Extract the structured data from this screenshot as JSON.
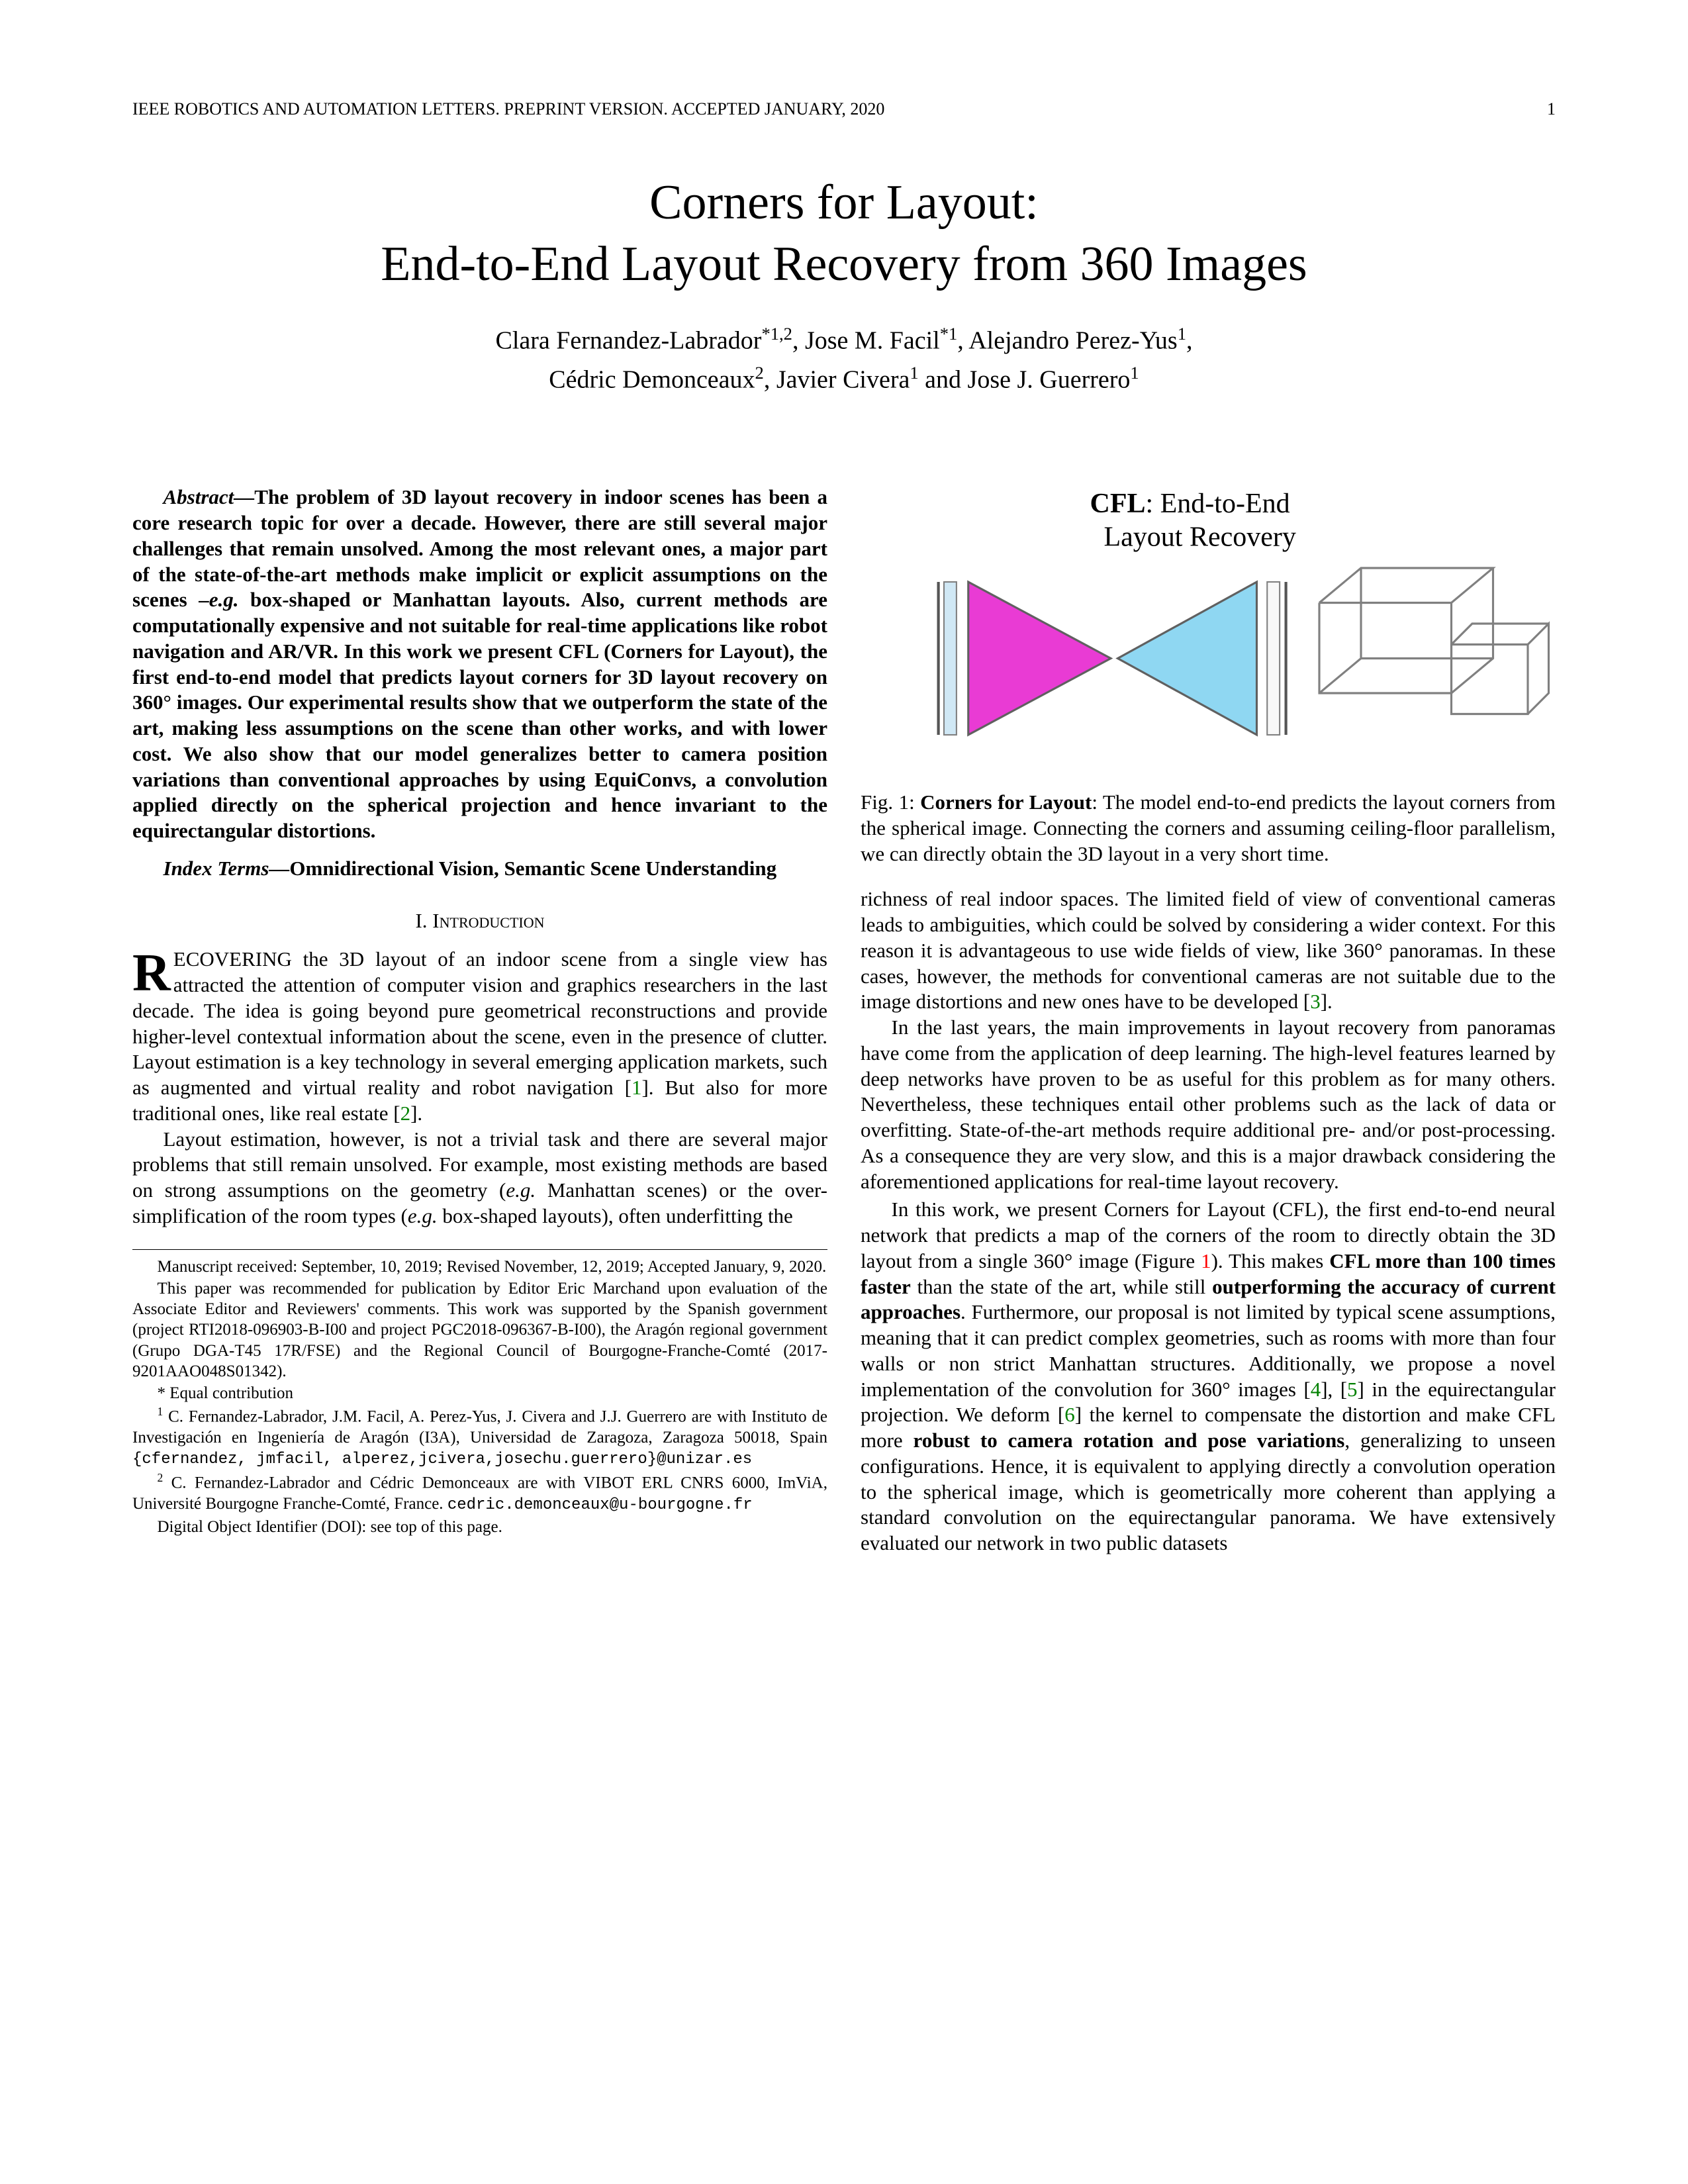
{
  "header": {
    "journal": "IEEE ROBOTICS AND AUTOMATION LETTERS. PREPRINT VERSION. ACCEPTED JANUARY, 2020",
    "page_number": "1"
  },
  "title": {
    "line1": "Corners for Layout:",
    "line2": "End-to-End Layout Recovery from 360 Images"
  },
  "authors": {
    "line1_parts": [
      {
        "t": "Clara Fernandez-Labrador"
      },
      {
        "t": "*1,2",
        "sup": true
      },
      {
        "t": ", Jose M. Facil"
      },
      {
        "t": "*1",
        "sup": true
      },
      {
        "t": ", Alejandro Perez-Yus"
      },
      {
        "t": "1",
        "sup": true
      },
      {
        "t": ","
      }
    ],
    "line2_parts": [
      {
        "t": "Cédric Demonceaux"
      },
      {
        "t": "2",
        "sup": true
      },
      {
        "t": ", Javier Civera"
      },
      {
        "t": "1",
        "sup": true
      },
      {
        "t": " and Jose J. Guerrero"
      },
      {
        "t": "1",
        "sup": true
      }
    ]
  },
  "abstract": {
    "label": "Abstract—",
    "body_parts": [
      {
        "t": "The problem of 3D layout recovery in indoor scenes has been a core research topic for over a decade. However, there are still several major challenges that remain unsolved. Among the most relevant ones, a major part of the state-of-the-art methods make implicit or explicit assumptions on the scenes –"
      },
      {
        "t": "e.g.",
        "i": true
      },
      {
        "t": " box-shaped or Manhattan layouts. Also, current methods are computationally expensive and not suitable for real-time applications like robot navigation and AR/VR. In this work we present CFL (Corners for Layout), the first end-to-end model that predicts layout corners for 3D layout recovery on 360° images. Our experimental results show that we outperform the state of the art, making less assumptions on the scene than other works, and with lower cost. We also show that our model generalizes better to camera position variations than conventional approaches by using EquiConvs, a convolution applied directly on the spherical projection and hence invariant to the equirectangular distortions."
      }
    ]
  },
  "index_terms": {
    "label": "Index Terms—",
    "body": "Omnidirectional Vision, Semantic Scene Understanding"
  },
  "section1_heading": "I. Introduction",
  "left_paras": {
    "p1_parts": [
      {
        "t": "ECOVERING the 3D layout of an indoor scene from a single view has attracted the attention of computer vision and graphics researchers in the last decade. The idea is going beyond pure geometrical reconstructions and provide higher-level contextual information about the scene, even in the presence of clutter. Layout estimation is a key technology in several emerging application markets, such as augmented and virtual reality and robot navigation ["
      },
      {
        "t": "1",
        "c": "cite-green"
      },
      {
        "t": "]. But also for more traditional ones, like real estate ["
      },
      {
        "t": "2",
        "c": "cite-green"
      },
      {
        "t": "]."
      }
    ],
    "p2_parts": [
      {
        "t": "Layout estimation, however, is not a trivial task and there are several major problems that still remain unsolved. For example, most existing methods are based on strong assumptions on the geometry ("
      },
      {
        "t": "e.g.",
        "i": true
      },
      {
        "t": " Manhattan scenes) or the over-simplification of the room types ("
      },
      {
        "t": "e.g.",
        "i": true
      },
      {
        "t": " box-shaped layouts), often underfitting the"
      }
    ]
  },
  "footnotes": {
    "f1": "Manuscript received: September, 10, 2019; Revised November, 12, 2019; Accepted January, 9, 2020.",
    "f2": "This paper was recommended for publication by Editor Eric Marchand upon evaluation of the Associate Editor and Reviewers' comments. This work was supported by the Spanish government (project RTI2018-096903-B-I00 and project PGC2018-096367-B-I00), the Aragón regional government (Grupo DGA-T45 17R/FSE) and the Regional Council of Bourgogne-Franche-Comté (2017-9201AAO048S01342).",
    "f3": "* Equal contribution",
    "f4_pre": "1",
    "f4_body": " C. Fernandez-Labrador, J.M. Facil, A. Perez-Yus, J. Civera and J.J. Guerrero are with Instituto de Investigación en Ingeniería de Aragón (I3A), Universidad de Zaragoza, Zaragoza 50018, Spain ",
    "f4_mono": "{cfernandez, jmfacil, alperez,jcivera,josechu.guerrero}@unizar.es",
    "f5_pre": "2",
    "f5_body": " C. Fernandez-Labrador and Cédric Demonceaux are with VIBOT ERL CNRS 6000, ImViA, Université Bourgogne Franche-Comté, France. ",
    "f5_mono": "cedric.demonceaux@u-bourgogne.fr",
    "f6": "Digital Object Identifier (DOI): see top of this page."
  },
  "figure1": {
    "label_line1": "CFL",
    "label_line1_rest": ": End-to-End",
    "label_line2": "Layout Recovery",
    "colors": {
      "magenta": "#e93bd4",
      "cyan": "#8fd7f2",
      "stroke": "#606060",
      "box_stroke": "#808080"
    },
    "caption_parts": [
      {
        "t": "Fig. 1: "
      },
      {
        "t": "Corners for Layout",
        "b": true
      },
      {
        "t": ": The model end-to-end predicts the layout corners from the spherical image. Connecting the corners and assuming ceiling-floor parallelism, we can directly obtain the 3D layout in a very short time."
      }
    ]
  },
  "right_paras": {
    "p1_parts": [
      {
        "t": "richness of real indoor spaces. The limited field of view of conventional cameras leads to ambiguities, which could be solved by considering a wider context. For this reason it is advantageous to use wide fields of view, like 360° panoramas. In these cases, however, the methods for conventional cameras are not suitable due to the image distortions and new ones have to be developed ["
      },
      {
        "t": "3",
        "c": "cite-green"
      },
      {
        "t": "]."
      }
    ],
    "p2_parts": [
      {
        "t": "In the last years, the main improvements in layout recovery from panoramas have come from the application of deep learning. The high-level features learned by deep networks have proven to be as useful for this problem as for many others. Nevertheless, these techniques entail other problems such as the lack of data or overfitting. State-of-the-art methods require additional pre- and/or post-processing. As a consequence they are very slow, and this is a major drawback considering the aforementioned applications for real-time layout recovery."
      }
    ],
    "p3_parts": [
      {
        "t": "In this work, we present Corners for Layout (CFL), the first end-to-end neural network that predicts a map of the corners of the room to directly obtain the 3D layout from a single 360° image (Figure "
      },
      {
        "t": "1",
        "c": "cite-red"
      },
      {
        "t": "). This makes "
      },
      {
        "t": "CFL more than 100 times faster",
        "b": true
      },
      {
        "t": " than the state of the art, while still "
      },
      {
        "t": "outperforming the accuracy of current approaches",
        "b": true
      },
      {
        "t": ". Furthermore, our proposal is not limited by typical scene assumptions, meaning that it can predict complex geometries, such as rooms with more than four walls or non strict Manhattan structures. Additionally, we propose a novel implementation of the convolution for 360° images ["
      },
      {
        "t": "4",
        "c": "cite-green"
      },
      {
        "t": "], ["
      },
      {
        "t": "5",
        "c": "cite-green"
      },
      {
        "t": "] in the equirectangular projection. We deform ["
      },
      {
        "t": "6",
        "c": "cite-green"
      },
      {
        "t": "] the kernel to compensate the distortion and make CFL more "
      },
      {
        "t": "robust to camera rotation and pose variations",
        "b": true
      },
      {
        "t": ", generalizing to unseen configurations. Hence, it is equivalent to applying directly a convolution operation to the spherical image, which is geometrically more coherent than applying a standard convolution on the equirectangular panorama. We have extensively evaluated our network in two public datasets"
      }
    ]
  }
}
